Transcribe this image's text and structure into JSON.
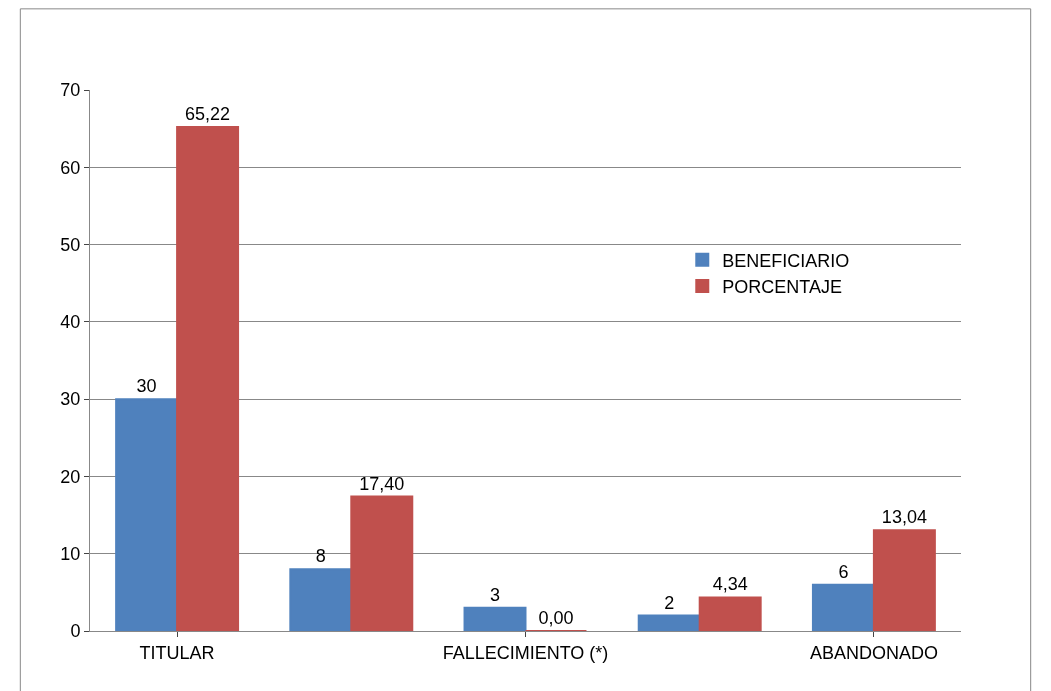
{
  "chart_data": {
    "type": "bar",
    "categories": [
      "TITULAR",
      null,
      "FALLECIMIENTO (*)",
      null,
      "ABANDONADO"
    ],
    "series": [
      {
        "name": "BENEFICIARIO",
        "color": "#4f81bd",
        "values": [
          30,
          8,
          3,
          2,
          6
        ],
        "value_labels": [
          "30",
          "8",
          "3",
          "2",
          "6"
        ]
      },
      {
        "name": "PORCENTAJE",
        "color": "#c0504d",
        "values": [
          65.22,
          17.4,
          0.0,
          4.34,
          13.04
        ],
        "value_labels": [
          "65,22",
          "17,40",
          "0,00",
          "4,34",
          "13,04"
        ]
      }
    ],
    "ylim": [
      0,
      70
    ],
    "yticks": [
      0,
      10,
      20,
      30,
      40,
      50,
      60,
      70
    ],
    "grid": "y",
    "legend": "right"
  }
}
